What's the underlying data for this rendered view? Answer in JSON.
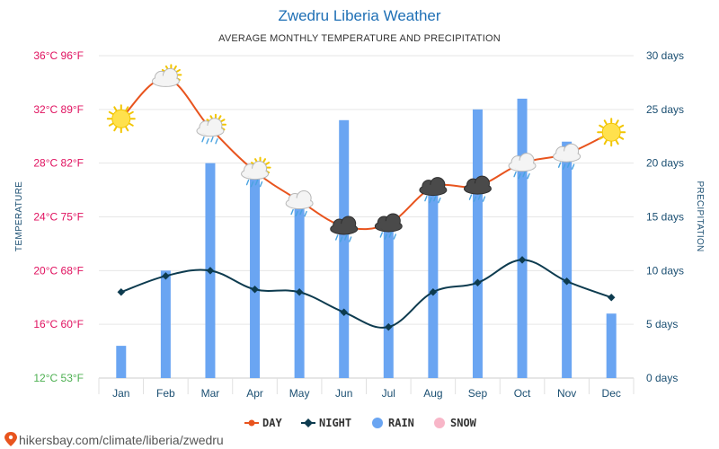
{
  "chart_data": {
    "type": "line",
    "title": "Zwedru Liberia Weather",
    "subtitle": "AVERAGE MONTHLY TEMPERATURE AND PRECIPITATION",
    "ylabel_left": "TEMPERATURE",
    "ylabel_right": "PRECIPITATION",
    "categories": [
      "Jan",
      "Feb",
      "Mar",
      "Apr",
      "May",
      "Jun",
      "Jul",
      "Aug",
      "Sep",
      "Oct",
      "Nov",
      "Dec"
    ],
    "left_axis": {
      "min": 12,
      "max": 36,
      "ticks": [
        {
          "value": 36,
          "label": "36°C 96°F",
          "color": "#e0115f"
        },
        {
          "value": 32,
          "label": "32°C 89°F",
          "color": "#e0115f"
        },
        {
          "value": 28,
          "label": "28°C 82°F",
          "color": "#e0115f"
        },
        {
          "value": 24,
          "label": "24°C 75°F",
          "color": "#e0115f"
        },
        {
          "value": 20,
          "label": "20°C 68°F",
          "color": "#e0115f"
        },
        {
          "value": 16,
          "label": "16°C 60°F",
          "color": "#e0115f"
        },
        {
          "value": 12,
          "label": "12°C 53°F",
          "color": "#4caf50"
        }
      ]
    },
    "right_axis": {
      "min": 0,
      "max": 30,
      "ticks": [
        {
          "value": 30,
          "label": "30 days"
        },
        {
          "value": 25,
          "label": "25 days"
        },
        {
          "value": 20,
          "label": "20 days"
        },
        {
          "value": 15,
          "label": "15 days"
        },
        {
          "value": 10,
          "label": "10 days"
        },
        {
          "value": 5,
          "label": "5 days"
        },
        {
          "value": 0,
          "label": "0 days"
        }
      ]
    },
    "series": [
      {
        "name": "DAY",
        "type": "line",
        "axis": "left",
        "color": "#e8541e",
        "values": [
          31.3,
          34.3,
          30.6,
          27.4,
          25.2,
          23.3,
          23.5,
          26.2,
          26.3,
          28.0,
          28.7,
          30.3
        ]
      },
      {
        "name": "NIGHT",
        "type": "line",
        "axis": "left",
        "color": "#0d3b4f",
        "values": [
          18.4,
          19.6,
          20.0,
          18.6,
          18.4,
          16.9,
          15.8,
          18.4,
          19.1,
          20.8,
          19.2,
          18.0
        ]
      },
      {
        "name": "RAIN",
        "type": "bar",
        "axis": "right",
        "color": "#6aa5f2",
        "values": [
          3,
          10,
          20,
          19,
          16,
          24,
          14,
          17,
          25,
          26,
          22,
          6
        ]
      },
      {
        "name": "SNOW",
        "type": "bar",
        "axis": "right",
        "color": "#f8b6c8",
        "values": [
          0,
          0,
          0,
          0,
          0,
          0,
          0,
          0,
          0,
          0,
          0,
          0
        ]
      }
    ],
    "weather_icons": [
      "sun",
      "sun-cloud",
      "sun-cloud-rain",
      "sun-cloud-rain",
      "cloud-rain",
      "dark-cloud-rain",
      "dark-cloud-rain",
      "dark-cloud-rain",
      "dark-cloud-rain",
      "cloud-rain",
      "cloud-rain",
      "sun"
    ],
    "legend_position": "bottom-center",
    "grid": true
  },
  "source": "hikersbay.com/climate/liberia/zwedru",
  "colors": {
    "day": "#e8541e",
    "night": "#0d3b4f",
    "rain": "#6aa5f2",
    "snow": "#f8b6c8",
    "axis_text": "#1b4f72"
  }
}
